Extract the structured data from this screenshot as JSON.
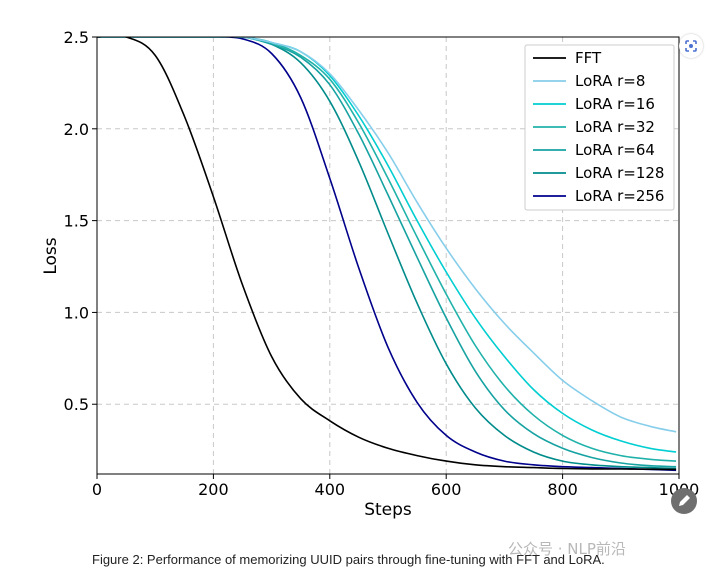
{
  "chart_data": {
    "type": "line",
    "xlabel": "Steps",
    "ylabel": "Loss",
    "xlim": [
      0,
      1000
    ],
    "ylim": [
      0.12,
      2.5
    ],
    "xticks": [
      "0",
      "200",
      "400",
      "600",
      "800",
      "1000"
    ],
    "yticks": [
      "0.5",
      "1.0",
      "1.5",
      "2.0",
      "2.5"
    ],
    "grid": true,
    "legend_position": "top-right",
    "x": [
      0,
      50,
      100,
      150,
      200,
      250,
      300,
      350,
      400,
      450,
      500,
      550,
      600,
      650,
      700,
      750,
      800,
      850,
      900,
      950,
      995
    ],
    "series": [
      {
        "name": "FFT",
        "color": "#000000",
        "values": [
          2.5,
          2.5,
          2.4,
          2.07,
          1.63,
          1.15,
          0.76,
          0.53,
          0.41,
          0.32,
          0.26,
          0.22,
          0.19,
          0.17,
          0.16,
          0.155,
          0.15,
          0.148,
          0.147,
          0.146,
          0.145
        ]
      },
      {
        "name": "LoRA r=8",
        "color": "#87ceeb",
        "values": [
          2.5,
          2.5,
          2.5,
          2.5,
          2.5,
          2.5,
          2.47,
          2.42,
          2.3,
          2.1,
          1.87,
          1.6,
          1.35,
          1.13,
          0.94,
          0.78,
          0.63,
          0.52,
          0.43,
          0.38,
          0.35
        ]
      },
      {
        "name": "LoRA r=16",
        "color": "#00ced1",
        "values": [
          2.5,
          2.5,
          2.5,
          2.5,
          2.5,
          2.5,
          2.47,
          2.42,
          2.29,
          2.07,
          1.8,
          1.5,
          1.22,
          0.97,
          0.76,
          0.58,
          0.45,
          0.36,
          0.3,
          0.26,
          0.24
        ]
      },
      {
        "name": "LoRA r=32",
        "color": "#20b2aa",
        "values": [
          2.5,
          2.5,
          2.5,
          2.5,
          2.5,
          2.5,
          2.47,
          2.4,
          2.27,
          2.03,
          1.73,
          1.41,
          1.1,
          0.82,
          0.6,
          0.44,
          0.33,
          0.26,
          0.22,
          0.2,
          0.19
        ]
      },
      {
        "name": "LoRA r=64",
        "color": "#17a2a2",
        "values": [
          2.5,
          2.5,
          2.5,
          2.5,
          2.5,
          2.5,
          2.46,
          2.39,
          2.24,
          1.97,
          1.64,
          1.3,
          0.97,
          0.68,
          0.47,
          0.34,
          0.26,
          0.21,
          0.18,
          0.165,
          0.16
        ]
      },
      {
        "name": "LoRA r=128",
        "color": "#008b8b",
        "values": [
          2.5,
          2.5,
          2.5,
          2.5,
          2.5,
          2.5,
          2.46,
          2.36,
          2.15,
          1.82,
          1.43,
          1.05,
          0.72,
          0.48,
          0.33,
          0.24,
          0.19,
          0.17,
          0.16,
          0.155,
          0.15
        ]
      },
      {
        "name": "LoRA r=256",
        "color": "#00008b",
        "values": [
          2.5,
          2.5,
          2.5,
          2.5,
          2.5,
          2.49,
          2.41,
          2.17,
          1.73,
          1.24,
          0.81,
          0.51,
          0.33,
          0.24,
          0.19,
          0.17,
          0.16,
          0.155,
          0.15,
          0.145,
          0.14
        ]
      }
    ]
  },
  "caption": "Figure 2:  Performance of memorizing UUID pairs through fine-tuning with FFT and LoRA.",
  "watermark": "公众号 · NLP前沿",
  "icons": {
    "lens": "google-lens-icon",
    "edit": "pen-icon"
  }
}
